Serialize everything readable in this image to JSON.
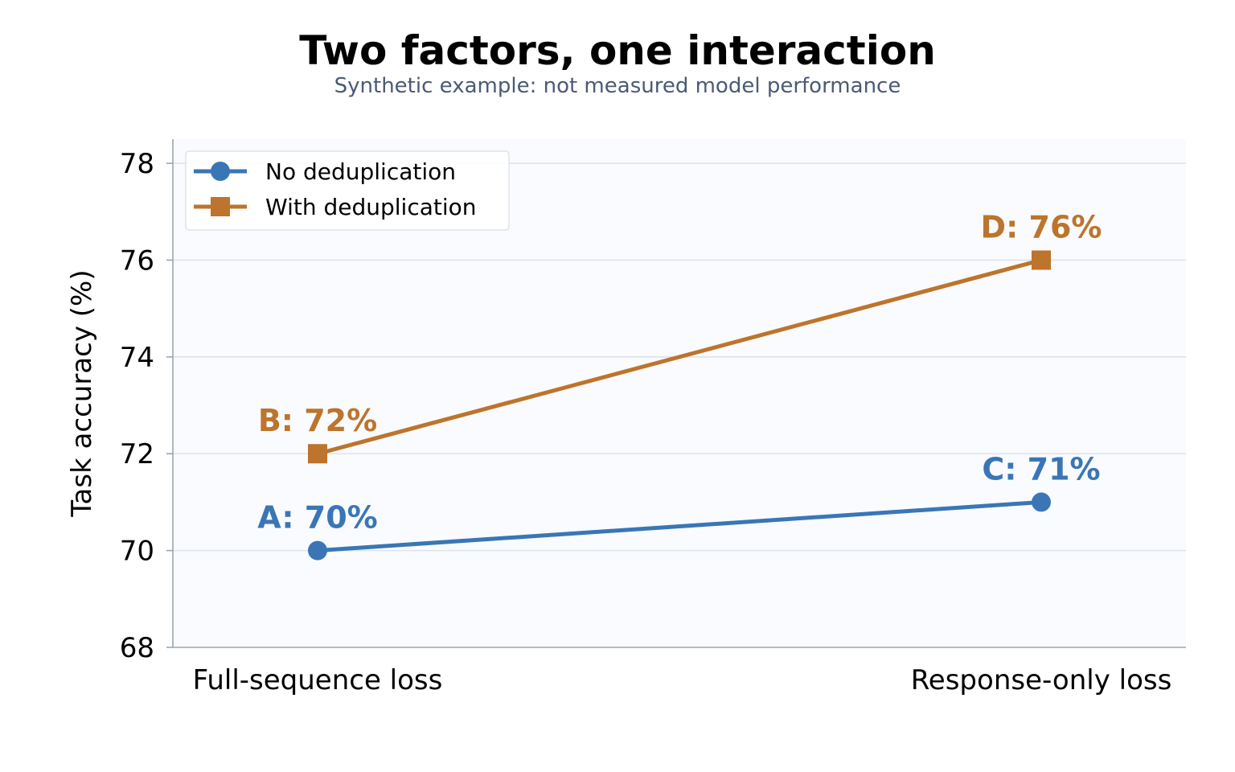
{
  "chart_data": {
    "type": "line",
    "title": "Two factors, one interaction",
    "subtitle": "Synthetic example: not measured model performance",
    "xlabel": "",
    "ylabel": "Task accuracy (%)",
    "categories": [
      "Full-sequence loss",
      "Response-only loss"
    ],
    "ylim": [
      68,
      78.5
    ],
    "yticks": [
      68,
      70,
      72,
      74,
      76,
      78
    ],
    "grid": true,
    "legend_position": "top-left",
    "series": [
      {
        "name": "No deduplication",
        "values": [
          70,
          71
        ],
        "color": "#3a76b5",
        "marker": "circle",
        "labels": [
          "A: 70%",
          "C: 71%"
        ]
      },
      {
        "name": "With deduplication",
        "values": [
          72,
          76
        ],
        "color": "#bd742c",
        "marker": "square",
        "labels": [
          "B: 72%",
          "D: 76%"
        ]
      }
    ]
  }
}
